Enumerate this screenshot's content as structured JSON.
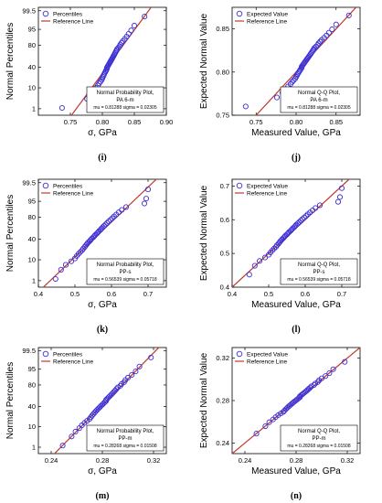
{
  "chart_data": [
    {
      "id": "i",
      "type": "scatter",
      "plot": "probability",
      "panel_label": "(i)",
      "xlabel": "σ, GPa",
      "ylabel": "Normal Percentiles",
      "xlim": [
        0.7,
        0.9
      ],
      "x_ticks": [
        "0.75",
        "0.80",
        "0.85",
        "0.90"
      ],
      "y_ticks": [
        "1",
        "10",
        "40",
        "80",
        "95",
        "99.5"
      ],
      "legend": {
        "position": "top-left",
        "markers": "Percentiles",
        "line": "Reference Line"
      },
      "annotation": [
        "Normal Probability Plot,",
        "PA 6-m",
        "mu = 0.81288  sigma = 0.02305"
      ],
      "mu": 0.81288,
      "sigma": 0.02305,
      "points_x": [
        0.737,
        0.776,
        0.783,
        0.787,
        0.79,
        0.793,
        0.795,
        0.797,
        0.799,
        0.8,
        0.801,
        0.802,
        0.803,
        0.804,
        0.805,
        0.806,
        0.807,
        0.807,
        0.808,
        0.809,
        0.81,
        0.811,
        0.812,
        0.813,
        0.814,
        0.815,
        0.816,
        0.817,
        0.818,
        0.819,
        0.82,
        0.821,
        0.822,
        0.823,
        0.825,
        0.827,
        0.828,
        0.83,
        0.832,
        0.835,
        0.838,
        0.841,
        0.845,
        0.85,
        0.866
      ]
    },
    {
      "id": "j",
      "type": "scatter",
      "plot": "qq",
      "panel_label": "(j)",
      "xlabel": "Measured Value, GPa",
      "ylabel": "Expected Normal Value",
      "xlim": [
        0.72,
        0.88
      ],
      "ylim": [
        0.75,
        0.875
      ],
      "x_ticks": [
        "0.75",
        "0.80",
        "0.85"
      ],
      "y_ticks": [
        "0.75",
        "0.80",
        "0.85"
      ],
      "legend": {
        "position": "top-left",
        "markers": "Expected Value",
        "line": "Reference Line"
      },
      "annotation": [
        "Normal Q-Q Plot,",
        "PA 6-m",
        "mu = 0.81288  sigma = 0.02305"
      ],
      "mu": 0.81288,
      "sigma": 0.02305,
      "points_x": [
        0.737,
        0.776,
        0.783,
        0.787,
        0.79,
        0.793,
        0.795,
        0.797,
        0.799,
        0.8,
        0.801,
        0.802,
        0.803,
        0.804,
        0.805,
        0.806,
        0.807,
        0.807,
        0.808,
        0.809,
        0.81,
        0.811,
        0.812,
        0.813,
        0.814,
        0.815,
        0.816,
        0.817,
        0.818,
        0.819,
        0.82,
        0.821,
        0.822,
        0.823,
        0.825,
        0.827,
        0.828,
        0.83,
        0.832,
        0.835,
        0.838,
        0.841,
        0.845,
        0.85,
        0.866
      ]
    },
    {
      "id": "k",
      "type": "scatter",
      "plot": "probability",
      "panel_label": "(k)",
      "xlabel": "σ, GPa",
      "ylabel": "Normal Percentiles",
      "xlim": [
        0.4,
        0.75
      ],
      "x_ticks": [
        "0.4",
        "0.5",
        "0.6",
        "0.7"
      ],
      "y_ticks": [
        "1",
        "10",
        "40",
        "80",
        "95",
        "99.5"
      ],
      "legend": {
        "position": "top-left",
        "markers": "Percentiles",
        "line": "Reference Line"
      },
      "annotation": [
        "Normal Probability Plot,",
        "PP-s",
        "mu = 0.56539  sigma = 0.05718"
      ],
      "mu": 0.56539,
      "sigma": 0.05718,
      "points_x": [
        0.447,
        0.462,
        0.475,
        0.49,
        0.5,
        0.505,
        0.51,
        0.515,
        0.52,
        0.523,
        0.527,
        0.53,
        0.533,
        0.536,
        0.54,
        0.543,
        0.546,
        0.55,
        0.553,
        0.556,
        0.56,
        0.563,
        0.566,
        0.57,
        0.573,
        0.576,
        0.58,
        0.584,
        0.588,
        0.592,
        0.597,
        0.602,
        0.607,
        0.613,
        0.62,
        0.628,
        0.64,
        0.69,
        0.695,
        0.7
      ]
    },
    {
      "id": "l",
      "type": "scatter",
      "plot": "qq",
      "panel_label": "(l)",
      "xlabel": "Measured Value, GPa",
      "ylabel": "Expected Normal Value",
      "xlim": [
        0.4,
        0.75
      ],
      "ylim": [
        0.4,
        0.72
      ],
      "x_ticks": [
        "0.4",
        "0.5",
        "0.6",
        "0.7"
      ],
      "y_ticks": [
        "0.4",
        "0.5",
        "0.6",
        "0.7"
      ],
      "legend": {
        "position": "top-left",
        "markers": "Expected Value",
        "line": "Reference Line"
      },
      "annotation": [
        "Normal Q-Q Plot,",
        "PP-s",
        "mu = 0.56539  sigma = 0.05718"
      ],
      "mu": 0.56539,
      "sigma": 0.05718,
      "points_x": [
        0.447,
        0.462,
        0.475,
        0.49,
        0.5,
        0.505,
        0.51,
        0.515,
        0.52,
        0.523,
        0.527,
        0.53,
        0.533,
        0.536,
        0.54,
        0.543,
        0.546,
        0.55,
        0.553,
        0.556,
        0.56,
        0.563,
        0.566,
        0.57,
        0.573,
        0.576,
        0.58,
        0.584,
        0.588,
        0.592,
        0.597,
        0.602,
        0.607,
        0.613,
        0.62,
        0.628,
        0.64,
        0.69,
        0.695,
        0.7
      ]
    },
    {
      "id": "m",
      "type": "scatter",
      "plot": "probability",
      "panel_label": "(m)",
      "xlabel": "σ, GPa",
      "ylabel": "Normal Percentiles",
      "xlim": [
        0.23,
        0.33
      ],
      "x_ticks": [
        "0.24",
        "0.28",
        "0.32"
      ],
      "y_ticks": [
        "1",
        "10",
        "40",
        "80",
        "95",
        "99.5"
      ],
      "legend": {
        "position": "top-left",
        "markers": "Percentiles",
        "line": "Reference Line"
      },
      "annotation": [
        "Normal Probability Plot,",
        "PP-m",
        "mu = 0.28268  sigma = 0.01508"
      ],
      "mu": 0.28268,
      "sigma": 0.01508,
      "points_x": [
        0.249,
        0.256,
        0.259,
        0.262,
        0.264,
        0.266,
        0.268,
        0.27,
        0.271,
        0.272,
        0.273,
        0.274,
        0.275,
        0.276,
        0.277,
        0.278,
        0.279,
        0.28,
        0.281,
        0.282,
        0.283,
        0.283,
        0.284,
        0.285,
        0.286,
        0.287,
        0.288,
        0.289,
        0.29,
        0.291,
        0.292,
        0.294,
        0.295,
        0.297,
        0.298,
        0.3,
        0.303,
        0.306,
        0.309,
        0.318
      ]
    },
    {
      "id": "n",
      "type": "scatter",
      "plot": "qq",
      "panel_label": "(n)",
      "xlabel": "Measured Value, GPa",
      "ylabel": "Expected Normal Value",
      "xlim": [
        0.23,
        0.33
      ],
      "ylim": [
        0.23,
        0.33
      ],
      "x_ticks": [
        "0.24",
        "0.28",
        "0.32"
      ],
      "y_ticks": [
        "0.24",
        "0.28",
        "0.32"
      ],
      "legend": {
        "position": "top-left",
        "markers": "Expected Value",
        "line": "Reference Line"
      },
      "annotation": [
        "Normal Q-Q Plot,",
        "PP-m",
        "mu = 0.28268  sigma = 0.01508"
      ],
      "mu": 0.28268,
      "sigma": 0.01508,
      "points_x": [
        0.249,
        0.256,
        0.259,
        0.262,
        0.264,
        0.266,
        0.268,
        0.27,
        0.271,
        0.272,
        0.273,
        0.274,
        0.275,
        0.276,
        0.277,
        0.278,
        0.279,
        0.28,
        0.281,
        0.282,
        0.283,
        0.283,
        0.284,
        0.285,
        0.286,
        0.287,
        0.288,
        0.289,
        0.29,
        0.291,
        0.292,
        0.294,
        0.295,
        0.297,
        0.298,
        0.3,
        0.303,
        0.306,
        0.309,
        0.318
      ]
    }
  ],
  "colors": {
    "marker": "#3b2fd6",
    "reference_line": "#c0392b",
    "axis": "#000000"
  }
}
